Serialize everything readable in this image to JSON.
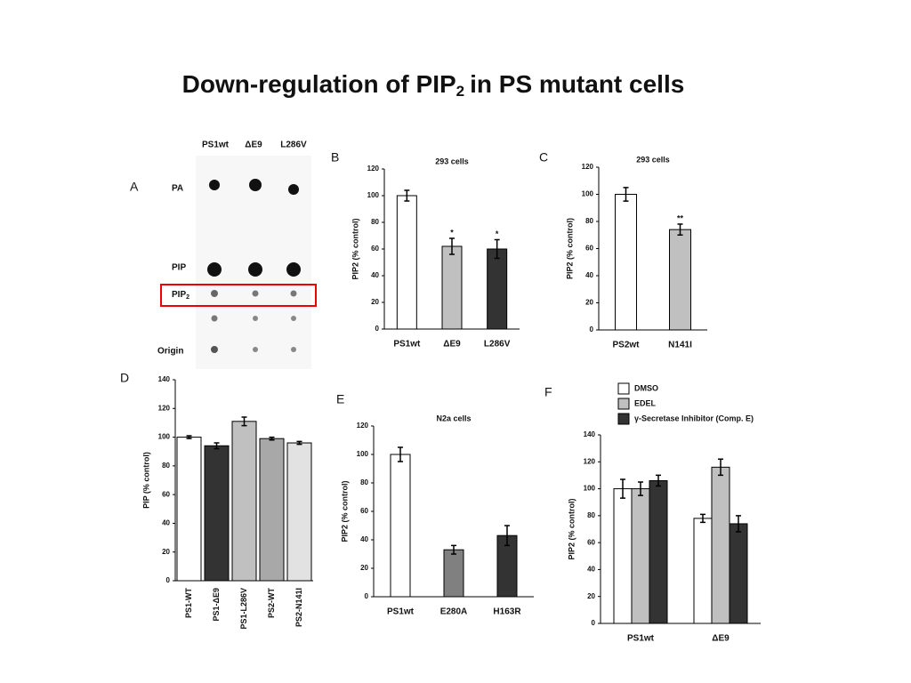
{
  "title": {
    "text": "Down-regulation of PIP",
    "sub": "2",
    "rest": "in PS mutant cells"
  },
  "panel_a": {
    "letter": "A",
    "lanes": [
      "PS1wt",
      "ΔE9",
      "L286V"
    ],
    "spots": [
      {
        "text": "PA"
      },
      {
        "text": "PIP"
      },
      {
        "text": "PIP",
        "sub": "2"
      },
      {
        "text": "Origin"
      }
    ]
  },
  "chart_data": [
    {
      "type": "bar",
      "letter": "B",
      "title": "293 cells",
      "ylabel": "PIP2  (% control)",
      "categories": [
        "PS1wt",
        "ΔE9",
        "L286V"
      ],
      "values": [
        100,
        62,
        60
      ],
      "errors": [
        4,
        6,
        7
      ],
      "colors": [
        "#ffffff",
        "#c0c0c0",
        "#333333"
      ],
      "annotations": [
        {
          "index": 1,
          "text": "*"
        },
        {
          "index": 2,
          "text": "*"
        }
      ],
      "ylim": [
        0,
        120
      ],
      "yticks": [
        0,
        20,
        40,
        60,
        80,
        100,
        120
      ]
    },
    {
      "type": "bar",
      "letter": "C",
      "title": "293 cells",
      "ylabel": "PIP2  (% control)",
      "categories": [
        "PS2wt",
        "N141I"
      ],
      "values": [
        100,
        74
      ],
      "errors": [
        5,
        4
      ],
      "colors": [
        "#ffffff",
        "#c0c0c0"
      ],
      "annotations": [
        {
          "index": 1,
          "text": "**"
        }
      ],
      "ylim": [
        0,
        120
      ],
      "yticks": [
        0,
        20,
        40,
        60,
        80,
        100,
        120
      ]
    },
    {
      "type": "bar",
      "letter": "D",
      "ylabel": "PIP (% control)",
      "categories": [
        "PS1-WT",
        "PS1-ΔE9",
        "PS1-L286V",
        "PS2-WT",
        "PS2-N141I"
      ],
      "values": [
        100,
        94,
        111,
        99,
        96
      ],
      "errors": [
        1,
        2,
        3,
        1,
        1
      ],
      "colors": [
        "#ffffff",
        "#333333",
        "#c0c0c0",
        "#a8a8a8",
        "#e2e2e2"
      ],
      "ylim": [
        0,
        140
      ],
      "yticks": [
        0,
        20,
        40,
        60,
        80,
        100,
        120,
        140
      ]
    },
    {
      "type": "bar",
      "letter": "E",
      "title": "N2a cells",
      "ylabel": "PIP2 (% control)",
      "categories": [
        "PS1wt",
        "E280A",
        "H163R"
      ],
      "values": [
        100,
        33,
        43
      ],
      "errors": [
        5,
        3,
        7
      ],
      "colors": [
        "#ffffff",
        "#808080",
        "#333333"
      ],
      "ylim": [
        0,
        120
      ],
      "yticks": [
        0,
        20,
        40,
        60,
        80,
        100,
        120
      ]
    },
    {
      "type": "grouped_bar",
      "letter": "F",
      "ylabel": "PIP2  (% control)",
      "categories": [
        "PS1wt",
        "ΔE9"
      ],
      "series": [
        {
          "name": "DMSO",
          "color": "#ffffff",
          "values": [
            100,
            78
          ],
          "errors": [
            7,
            3
          ]
        },
        {
          "name": "EDEL",
          "color": "#c0c0c0",
          "values": [
            100,
            116
          ],
          "errors": [
            5,
            6
          ]
        },
        {
          "name": "γ-Secretase Inhibitor (Comp. E)",
          "color": "#333333",
          "values": [
            106,
            74
          ],
          "errors": [
            4,
            6
          ]
        }
      ],
      "ylim": [
        0,
        140
      ],
      "yticks": [
        0,
        20,
        40,
        60,
        80,
        100,
        120,
        140
      ]
    }
  ]
}
